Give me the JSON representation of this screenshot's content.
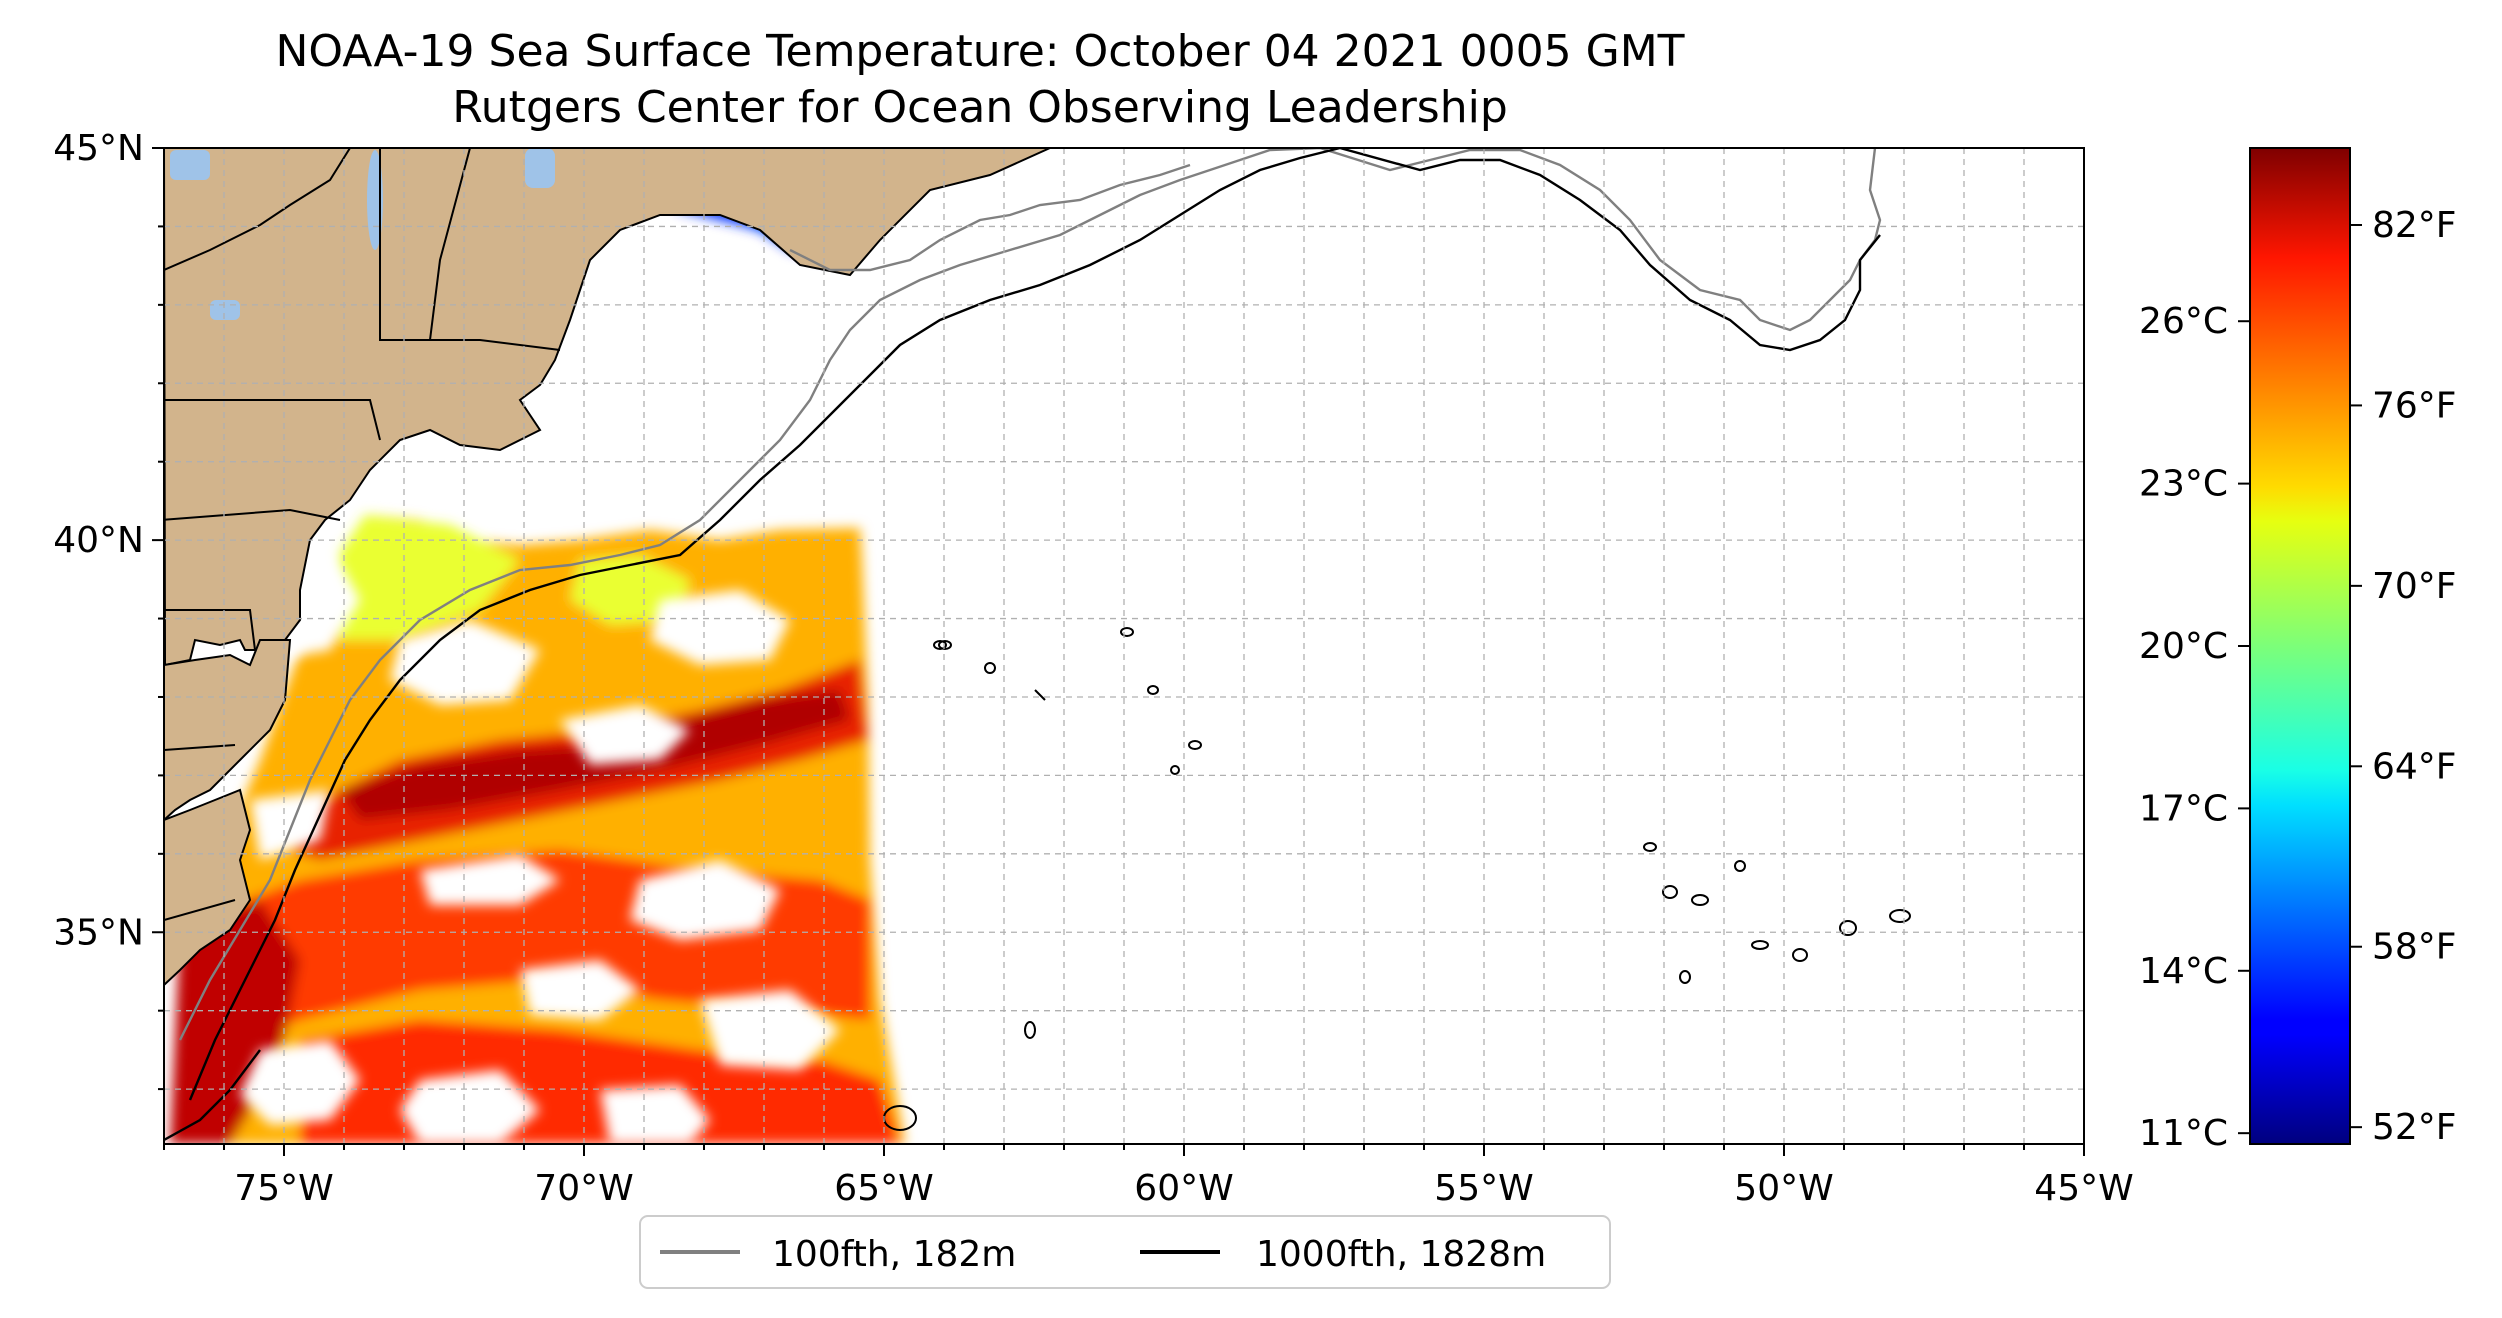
{
  "title": "NOAA-19 Sea Surface Temperature: October 04 2021 0005 GMT",
  "subtitle": "Rutgers Center for Ocean Observing Leadership",
  "map": {
    "lon_range": [
      -77,
      -45
    ],
    "lat_range": [
      32.3,
      45
    ],
    "x_ticks": [
      {
        "lon": -75,
        "label": "75°W"
      },
      {
        "lon": -70,
        "label": "70°W"
      },
      {
        "lon": -65,
        "label": "65°W"
      },
      {
        "lon": -60,
        "label": "60°W"
      },
      {
        "lon": -55,
        "label": "55°W"
      },
      {
        "lon": -50,
        "label": "50°W"
      },
      {
        "lon": -45,
        "label": "45°W"
      }
    ],
    "y_ticks": [
      {
        "lat": 45,
        "label": "45°N"
      },
      {
        "lat": 40,
        "label": "40°N"
      },
      {
        "lat": 35,
        "label": "35°N"
      }
    ],
    "grid": true,
    "land_color": "#d2b48c",
    "lake_color": "#9fc3e8"
  },
  "legend": {
    "placement": "bottom-center",
    "items": [
      {
        "label": "100fth, 182m",
        "color": "#808080"
      },
      {
        "label": "1000fth, 1828m",
        "color": "#000000"
      }
    ]
  },
  "colorbar": {
    "colormap": "jet",
    "celsius_range": [
      10.8,
      29.2
    ],
    "celsius_ticks": [
      {
        "value": 11,
        "label": "11°C"
      },
      {
        "value": 14,
        "label": "14°C"
      },
      {
        "value": 17,
        "label": "17°C"
      },
      {
        "value": 20,
        "label": "20°C"
      },
      {
        "value": 23,
        "label": "23°C"
      },
      {
        "value": 26,
        "label": "26°C"
      }
    ],
    "fahrenheit_ticks": [
      {
        "value": 52,
        "label": "52°F"
      },
      {
        "value": 58,
        "label": "58°F"
      },
      {
        "value": 64,
        "label": "64°F"
      },
      {
        "value": 70,
        "label": "70°F"
      },
      {
        "value": 76,
        "label": "76°F"
      },
      {
        "value": 82,
        "label": "82°F"
      }
    ]
  }
}
